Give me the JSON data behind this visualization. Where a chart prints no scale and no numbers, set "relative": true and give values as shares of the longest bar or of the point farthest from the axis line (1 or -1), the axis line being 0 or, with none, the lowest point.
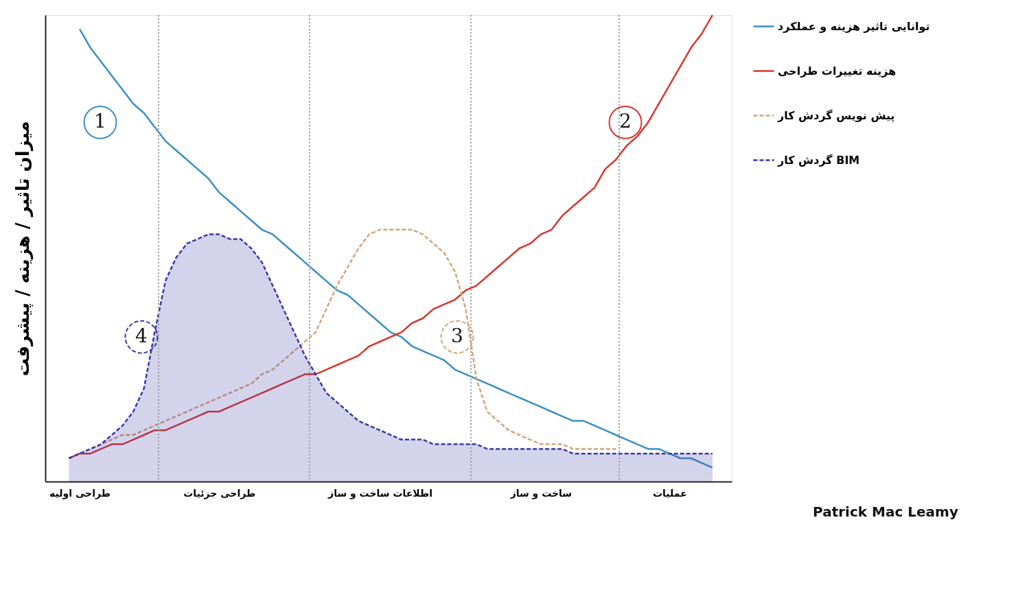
{
  "chart_data": {
    "type": "line",
    "relative": true,
    "ylabel": "میزان تاثیر / هزینه / پیشرفت",
    "categories": [
      null,
      "طراحی اولیه",
      null,
      null,
      null,
      null,
      null,
      null,
      null,
      null,
      null,
      null,
      null,
      null,
      "طراحی جزئیات",
      null,
      null,
      null,
      null,
      null,
      null,
      null,
      null,
      null,
      null,
      null,
      null,
      null,
      null,
      "اطلاعات ساخت و ساز",
      null,
      null,
      null,
      null,
      null,
      null,
      null,
      null,
      null,
      null,
      null,
      null,
      null,
      null,
      "ساخت و ساز",
      null,
      null,
      null,
      null,
      null,
      null,
      null,
      null,
      null,
      null,
      null,
      "عملیات",
      null,
      null,
      null,
      null
    ],
    "grid": false,
    "legend": "right",
    "series": [
      {
        "name": "توانایی تاثیر هزینه و عملکرد",
        "color": "#3a8ec4",
        "line_style": "solid",
        "values": [
          null,
          0.97,
          0.93,
          0.9,
          0.87,
          0.84,
          0.81,
          0.79,
          0.76,
          0.73,
          0.71,
          0.69,
          0.67,
          0.65,
          0.62,
          0.6,
          0.58,
          0.56,
          0.54,
          0.53,
          0.51,
          0.49,
          0.47,
          0.45,
          0.43,
          0.41,
          0.4,
          0.38,
          0.36,
          0.34,
          0.32,
          0.31,
          0.29,
          0.28,
          0.27,
          0.26,
          0.24,
          0.23,
          0.22,
          0.21,
          0.2,
          0.19,
          0.18,
          0.17,
          0.16,
          0.15,
          0.14,
          0.13,
          0.13,
          0.12,
          0.11,
          0.1,
          0.09,
          0.08,
          0.07,
          0.07,
          0.06,
          0.05,
          0.05,
          0.04,
          0.03
        ]
      },
      {
        "name": "هزینه تغییرات طراحی",
        "color": "#d9352a",
        "line_style": "solid",
        "values": [
          0.05,
          0.06,
          0.06,
          0.07,
          0.08,
          0.08,
          0.09,
          0.1,
          0.11,
          0.11,
          0.12,
          0.13,
          0.14,
          0.15,
          0.15,
          0.16,
          0.17,
          0.18,
          0.19,
          0.2,
          0.21,
          0.22,
          0.23,
          0.23,
          0.24,
          0.25,
          0.26,
          0.27,
          0.29,
          0.3,
          0.31,
          0.32,
          0.34,
          0.35,
          0.37,
          0.38,
          0.39,
          0.41,
          0.42,
          0.44,
          0.46,
          0.48,
          0.5,
          0.51,
          0.53,
          0.54,
          0.57,
          0.59,
          0.61,
          0.63,
          0.67,
          0.69,
          0.72,
          0.74,
          0.77,
          0.81,
          0.85,
          0.89,
          0.93,
          0.96,
          1.0
        ]
      },
      {
        "name": "پیش نویس گردش کار",
        "color": "#d4a373",
        "line_style": "dashed",
        "values": [
          0.05,
          0.06,
          0.07,
          0.08,
          0.09,
          0.1,
          0.1,
          0.11,
          0.12,
          0.13,
          0.14,
          0.15,
          0.16,
          0.17,
          0.18,
          0.19,
          0.2,
          0.21,
          0.23,
          0.24,
          0.26,
          0.28,
          0.3,
          0.32,
          0.37,
          0.42,
          0.46,
          0.5,
          0.53,
          0.54,
          0.54,
          0.54,
          0.54,
          0.53,
          0.51,
          0.49,
          0.45,
          0.37,
          0.22,
          0.15,
          0.13,
          0.11,
          0.1,
          0.09,
          0.08,
          0.08,
          0.08,
          0.07,
          0.07,
          0.07,
          0.07,
          0.07,
          null,
          null,
          null,
          null,
          null,
          null,
          null,
          null,
          null
        ]
      },
      {
        "name": "گردش کار BIM",
        "type": "area",
        "color": "#3a36a8",
        "line_style": "dashed",
        "values": [
          0.05,
          0.06,
          0.07,
          0.08,
          0.1,
          0.12,
          0.15,
          0.2,
          0.32,
          0.43,
          0.48,
          0.51,
          0.52,
          0.53,
          0.53,
          0.52,
          0.52,
          0.5,
          0.47,
          0.42,
          0.37,
          0.32,
          0.27,
          0.23,
          0.19,
          0.17,
          0.15,
          0.13,
          0.12,
          0.11,
          0.1,
          0.09,
          0.09,
          0.09,
          0.08,
          0.08,
          0.08,
          0.08,
          0.08,
          0.07,
          0.07,
          0.07,
          0.07,
          0.07,
          0.07,
          0.07,
          0.07,
          0.06,
          0.06,
          0.06,
          0.06,
          0.06,
          0.06,
          0.06,
          0.06,
          0.06,
          0.06,
          0.06,
          0.06,
          0.06,
          0.06
        ]
      }
    ],
    "annotations": [
      "1",
      "2",
      "3",
      "4",
      "Patrick Mac Leamy"
    ]
  }
}
